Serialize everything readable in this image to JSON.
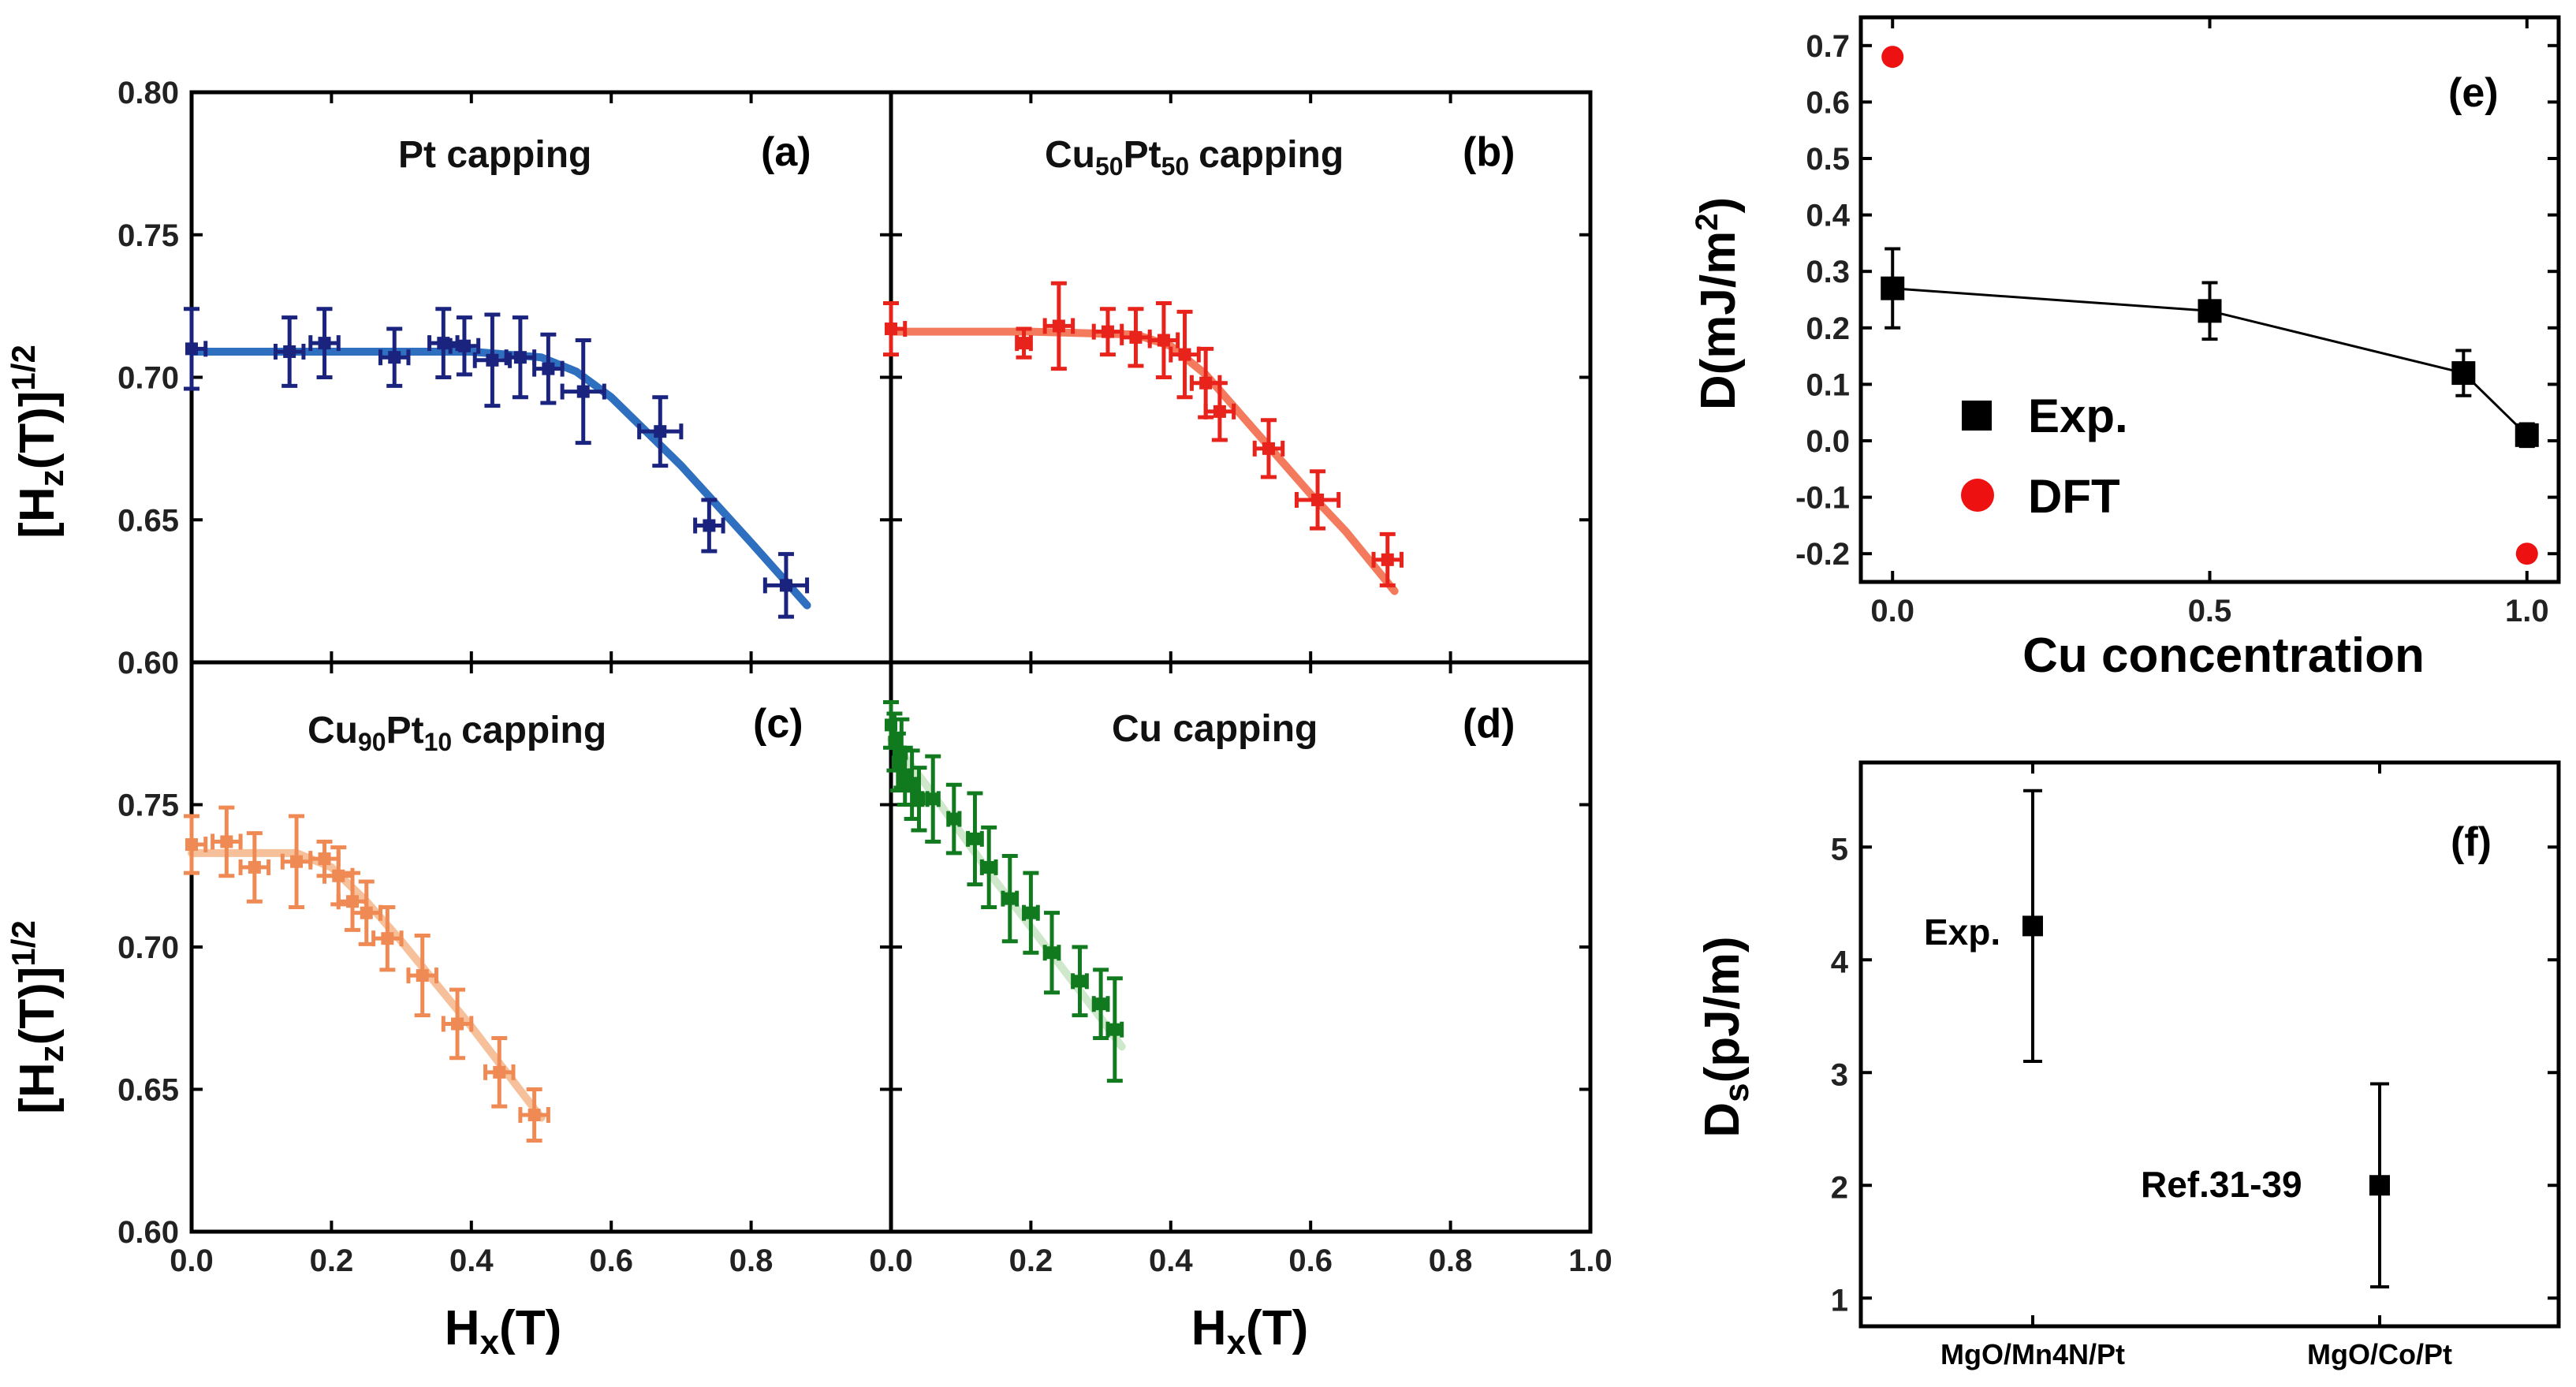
{
  "colors": {
    "a_points": "#1a237e",
    "a_fit": "#2f6fc0",
    "b_points": "#e8231b",
    "b_fit": "#f47a5e",
    "c_points": "#f08a55",
    "c_fit": "#f6c09a",
    "d_points": "#117a1f",
    "d_fit": "#cfe8cb",
    "exp": "#000000",
    "dft": "#ee1111"
  },
  "chart_data": [
    {
      "id": "a",
      "type": "scatter",
      "label": "(a)",
      "title_text": "Pt capping",
      "ylabel": "[Hz(T)]1/2",
      "xlabel": "",
      "xlim": [
        0.0,
        1.0
      ],
      "ylim": [
        0.6,
        0.8
      ],
      "yticks": [
        "0.60",
        "0.65",
        "0.70",
        "0.75",
        "0.80"
      ],
      "xticks": [],
      "points": [
        {
          "x": 0.0,
          "y": 0.71,
          "xerr": 0.02,
          "yerr": 0.014
        },
        {
          "x": 0.14,
          "y": 0.709,
          "xerr": 0.02,
          "yerr": 0.012
        },
        {
          "x": 0.19,
          "y": 0.712,
          "xerr": 0.02,
          "yerr": 0.012
        },
        {
          "x": 0.29,
          "y": 0.707,
          "xerr": 0.02,
          "yerr": 0.01
        },
        {
          "x": 0.36,
          "y": 0.712,
          "xerr": 0.02,
          "yerr": 0.012
        },
        {
          "x": 0.39,
          "y": 0.711,
          "xerr": 0.02,
          "yerr": 0.01
        },
        {
          "x": 0.43,
          "y": 0.706,
          "xerr": 0.025,
          "yerr": 0.016
        },
        {
          "x": 0.47,
          "y": 0.707,
          "xerr": 0.02,
          "yerr": 0.014
        },
        {
          "x": 0.51,
          "y": 0.703,
          "xerr": 0.02,
          "yerr": 0.012
        },
        {
          "x": 0.56,
          "y": 0.695,
          "xerr": 0.03,
          "yerr": 0.018
        },
        {
          "x": 0.67,
          "y": 0.681,
          "xerr": 0.03,
          "yerr": 0.012
        },
        {
          "x": 0.74,
          "y": 0.648,
          "xerr": 0.02,
          "yerr": 0.009
        },
        {
          "x": 0.85,
          "y": 0.627,
          "xerr": 0.03,
          "yerr": 0.011
        }
      ],
      "fit": {
        "x": [
          0.0,
          0.2,
          0.4,
          0.5,
          0.55,
          0.6,
          0.7,
          0.8,
          0.88
        ],
        "y": [
          0.709,
          0.709,
          0.709,
          0.707,
          0.702,
          0.693,
          0.669,
          0.642,
          0.62
        ]
      }
    },
    {
      "id": "b",
      "type": "scatter",
      "label": "(b)",
      "title_text": "capping",
      "title_base": "Cu",
      "title_sub1": "50",
      "title_mid": "Pt",
      "title_sub2": "50",
      "ylabel": "",
      "xlabel": "",
      "xlim": [
        0.0,
        1.0
      ],
      "ylim": [
        0.6,
        0.8
      ],
      "yticks": [],
      "xticks": [],
      "points": [
        {
          "x": 0.0,
          "y": 0.717,
          "xerr": 0.02,
          "yerr": 0.009
        },
        {
          "x": 0.19,
          "y": 0.712,
          "xerr": 0.01,
          "yerr": 0.005
        },
        {
          "x": 0.24,
          "y": 0.718,
          "xerr": 0.02,
          "yerr": 0.015
        },
        {
          "x": 0.31,
          "y": 0.716,
          "xerr": 0.02,
          "yerr": 0.008
        },
        {
          "x": 0.35,
          "y": 0.714,
          "xerr": 0.02,
          "yerr": 0.01
        },
        {
          "x": 0.39,
          "y": 0.713,
          "xerr": 0.02,
          "yerr": 0.013
        },
        {
          "x": 0.42,
          "y": 0.708,
          "xerr": 0.02,
          "yerr": 0.015
        },
        {
          "x": 0.45,
          "y": 0.698,
          "xerr": 0.02,
          "yerr": 0.012
        },
        {
          "x": 0.47,
          "y": 0.688,
          "xerr": 0.02,
          "yerr": 0.01
        },
        {
          "x": 0.54,
          "y": 0.675,
          "xerr": 0.02,
          "yerr": 0.01
        },
        {
          "x": 0.61,
          "y": 0.657,
          "xerr": 0.03,
          "yerr": 0.01
        },
        {
          "x": 0.71,
          "y": 0.636,
          "xerr": 0.02,
          "yerr": 0.009
        }
      ],
      "fit": {
        "x": [
          0.0,
          0.2,
          0.35,
          0.4,
          0.45,
          0.5,
          0.55,
          0.6,
          0.65,
          0.72
        ],
        "y": [
          0.716,
          0.716,
          0.715,
          0.711,
          0.701,
          0.687,
          0.673,
          0.659,
          0.646,
          0.625
        ]
      }
    },
    {
      "id": "c",
      "type": "scatter",
      "label": "(c)",
      "title_text": "capping",
      "title_base": "Cu",
      "title_sub1": "90",
      "title_mid": "Pt",
      "title_sub2": "10",
      "ylabel": "[Hz(T)]1/2",
      "xlabel": "Hx(T)",
      "xlim": [
        0.0,
        1.0
      ],
      "ylim": [
        0.6,
        0.8
      ],
      "yticks": [
        "0.60",
        "0.65",
        "0.70",
        "0.75"
      ],
      "xticks": [
        "0.0",
        "0.2",
        "0.4",
        "0.6",
        "0.8"
      ],
      "points": [
        {
          "x": 0.0,
          "y": 0.736,
          "xerr": 0.02,
          "yerr": 0.01
        },
        {
          "x": 0.05,
          "y": 0.737,
          "xerr": 0.02,
          "yerr": 0.012
        },
        {
          "x": 0.09,
          "y": 0.728,
          "xerr": 0.02,
          "yerr": 0.012
        },
        {
          "x": 0.15,
          "y": 0.73,
          "xerr": 0.02,
          "yerr": 0.016
        },
        {
          "x": 0.19,
          "y": 0.731,
          "xerr": 0.02,
          "yerr": 0.006
        },
        {
          "x": 0.21,
          "y": 0.725,
          "xerr": 0.02,
          "yerr": 0.01
        },
        {
          "x": 0.23,
          "y": 0.716,
          "xerr": 0.02,
          "yerr": 0.01
        },
        {
          "x": 0.25,
          "y": 0.712,
          "xerr": 0.02,
          "yerr": 0.011
        },
        {
          "x": 0.28,
          "y": 0.703,
          "xerr": 0.02,
          "yerr": 0.011
        },
        {
          "x": 0.33,
          "y": 0.69,
          "xerr": 0.02,
          "yerr": 0.014
        },
        {
          "x": 0.38,
          "y": 0.673,
          "xerr": 0.02,
          "yerr": 0.012
        },
        {
          "x": 0.44,
          "y": 0.656,
          "xerr": 0.02,
          "yerr": 0.012
        },
        {
          "x": 0.49,
          "y": 0.641,
          "xerr": 0.02,
          "yerr": 0.009
        }
      ],
      "fit": {
        "x": [
          0.0,
          0.1,
          0.15,
          0.2,
          0.25,
          0.3,
          0.35,
          0.4,
          0.45,
          0.5
        ],
        "y": [
          0.733,
          0.733,
          0.733,
          0.728,
          0.716,
          0.702,
          0.687,
          0.672,
          0.656,
          0.64
        ]
      }
    },
    {
      "id": "d",
      "type": "scatter",
      "label": "(d)",
      "title_text": "Cu capping",
      "ylabel": "",
      "xlabel": "Hx(T)",
      "xlim": [
        0.0,
        1.0
      ],
      "ylim": [
        0.6,
        0.8
      ],
      "yticks": [],
      "xticks": [
        "0.0",
        "0.2",
        "0.4",
        "0.6",
        "0.8",
        "1.0"
      ],
      "points": [
        {
          "x": 0.0,
          "y": 0.778,
          "xerr": 0.005,
          "yerr": 0.008
        },
        {
          "x": 0.005,
          "y": 0.772,
          "xerr": 0.005,
          "yerr": 0.01
        },
        {
          "x": 0.01,
          "y": 0.765,
          "xerr": 0.005,
          "yerr": 0.01
        },
        {
          "x": 0.015,
          "y": 0.768,
          "xerr": 0.005,
          "yerr": 0.012
        },
        {
          "x": 0.02,
          "y": 0.76,
          "xerr": 0.005,
          "yerr": 0.01
        },
        {
          "x": 0.03,
          "y": 0.757,
          "xerr": 0.005,
          "yerr": 0.012
        },
        {
          "x": 0.04,
          "y": 0.752,
          "xerr": 0.005,
          "yerr": 0.011
        },
        {
          "x": 0.06,
          "y": 0.752,
          "xerr": 0.008,
          "yerr": 0.015
        },
        {
          "x": 0.09,
          "y": 0.745,
          "xerr": 0.008,
          "yerr": 0.012
        },
        {
          "x": 0.12,
          "y": 0.738,
          "xerr": 0.01,
          "yerr": 0.016
        },
        {
          "x": 0.14,
          "y": 0.728,
          "xerr": 0.01,
          "yerr": 0.014
        },
        {
          "x": 0.17,
          "y": 0.717,
          "xerr": 0.01,
          "yerr": 0.015
        },
        {
          "x": 0.2,
          "y": 0.712,
          "xerr": 0.01,
          "yerr": 0.014
        },
        {
          "x": 0.23,
          "y": 0.698,
          "xerr": 0.01,
          "yerr": 0.014
        },
        {
          "x": 0.27,
          "y": 0.688,
          "xerr": 0.01,
          "yerr": 0.012
        },
        {
          "x": 0.3,
          "y": 0.68,
          "xerr": 0.01,
          "yerr": 0.012
        },
        {
          "x": 0.32,
          "y": 0.671,
          "xerr": 0.01,
          "yerr": 0.018
        }
      ],
      "fit": {
        "x": [
          0.0,
          0.05,
          0.1,
          0.15,
          0.2,
          0.25,
          0.3,
          0.33
        ],
        "y": [
          0.773,
          0.757,
          0.74,
          0.723,
          0.707,
          0.691,
          0.675,
          0.665
        ]
      }
    },
    {
      "id": "e",
      "type": "scatter",
      "label": "(e)",
      "xlabel": "Cu concentration",
      "ylabel": "D(mJ/m2)",
      "xlim": [
        -0.05,
        1.05
      ],
      "ylim": [
        -0.25,
        0.75
      ],
      "xticks": [
        "0.0",
        "0.5",
        "1.0"
      ],
      "yticks": [
        "-0.2",
        "-0.1",
        "0.0",
        "0.1",
        "0.2",
        "0.3",
        "0.4",
        "0.5",
        "0.6",
        "0.7"
      ],
      "series": [
        {
          "name": "Exp.",
          "x": [
            0.0,
            0.5,
            0.9,
            1.0
          ],
          "y": [
            0.27,
            0.23,
            0.12,
            0.01
          ],
          "yerr": [
            0.07,
            0.05,
            0.04,
            0.02
          ]
        },
        {
          "name": "DFT",
          "x": [
            0.0,
            1.0
          ],
          "y": [
            0.68,
            -0.2
          ]
        }
      ]
    },
    {
      "id": "f",
      "type": "scatter",
      "label": "(f)",
      "ylabel": "Ds(pJ/m)",
      "ylim": [
        0.75,
        5.75
      ],
      "yticks": [
        "1",
        "2",
        "3",
        "4",
        "5"
      ],
      "categories": [
        "MgO/Mn4N/Pt",
        "MgO/Co/Pt"
      ],
      "values": [
        4.3,
        2.0
      ],
      "errors": [
        [
          3.1,
          5.5
        ],
        [
          1.1,
          2.9
        ]
      ],
      "annotations": [
        "Exp.",
        "Ref.31-39"
      ]
    }
  ]
}
